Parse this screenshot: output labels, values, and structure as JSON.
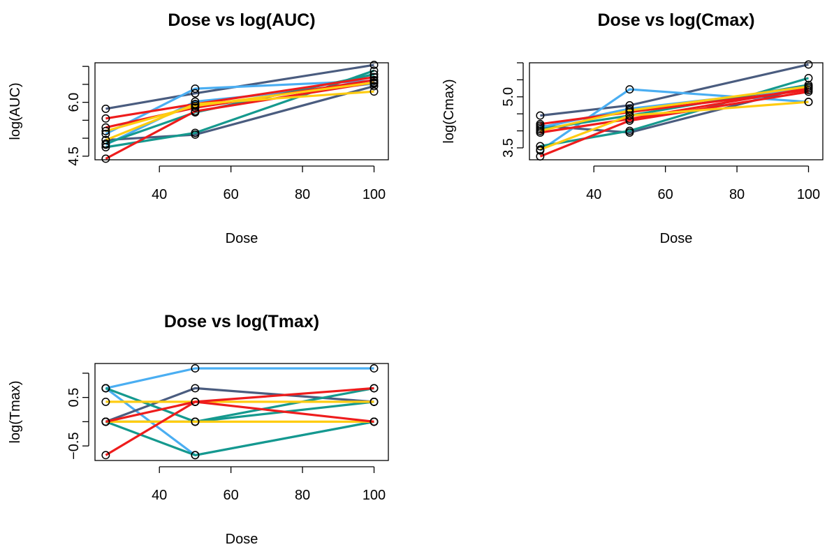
{
  "colors": {
    "navy": "#4A5C7F",
    "skyblue": "#4AAEF2",
    "teal": "#15998E",
    "red": "#EE1C1C",
    "gold": "#FFCC11",
    "point_outline": "#000000",
    "frame": "#000000"
  },
  "chart_data": [
    {
      "type": "line",
      "title": "Dose vs log(AUC)",
      "xlabel": "Dose",
      "ylabel": "log(AUC)",
      "xlim": [
        22,
        104
      ],
      "ylim": [
        4.4,
        7.1
      ],
      "xticks": [
        40,
        60,
        80,
        100
      ],
      "yticks": [
        4.5,
        5.0,
        5.5,
        6.0,
        6.5,
        7.0
      ],
      "yticklabels": [
        "4.5",
        "",
        "",
        "6.0",
        "",
        ""
      ],
      "grid": false,
      "x": [
        25,
        50,
        100
      ],
      "series": [
        {
          "color": "navy",
          "values": [
            5.82,
            6.25,
            7.04
          ]
        },
        {
          "color": "navy",
          "values": [
            4.95,
            5.1,
            6.45
          ]
        },
        {
          "color": "skyblue",
          "values": [
            5.12,
            6.38,
            6.6
          ]
        },
        {
          "color": "skyblue",
          "values": [
            4.82,
            6.02,
            6.52
          ]
        },
        {
          "color": "teal",
          "values": [
            4.75,
            5.15,
            6.88
          ]
        },
        {
          "color": "teal",
          "values": [
            4.85,
            5.72,
            6.78
          ]
        },
        {
          "color": "red",
          "values": [
            5.55,
            5.95,
            6.7
          ]
        },
        {
          "color": "red",
          "values": [
            5.3,
            5.85,
            6.62
          ]
        },
        {
          "color": "red",
          "values": [
            4.43,
            5.75,
            6.55
          ]
        },
        {
          "color": "gold",
          "values": [
            4.95,
            5.95,
            6.3
          ]
        },
        {
          "color": "gold",
          "values": [
            5.2,
            5.9,
            6.55
          ]
        }
      ]
    },
    {
      "type": "line",
      "title": "Dose vs log(Cmax)",
      "xlabel": "Dose",
      "ylabel": "log(Cmax)",
      "xlim": [
        22,
        104
      ],
      "ylim": [
        3.15,
        6.0
      ],
      "xticks": [
        40,
        60,
        80,
        100
      ],
      "yticks": [
        3.5,
        4.0,
        4.5,
        5.0,
        5.5,
        6.0
      ],
      "yticklabels": [
        "3.5",
        "",
        "",
        "5.0",
        "",
        ""
      ],
      "grid": false,
      "x": [
        25,
        50,
        100
      ],
      "series": [
        {
          "color": "navy",
          "values": [
            4.45,
            4.75,
            5.95
          ]
        },
        {
          "color": "navy",
          "values": [
            4.15,
            3.95,
            5.3
          ]
        },
        {
          "color": "skyblue",
          "values": [
            3.42,
            5.22,
            4.85
          ]
        },
        {
          "color": "skyblue",
          "values": [
            4.1,
            4.65,
            5.25
          ]
        },
        {
          "color": "teal",
          "values": [
            3.55,
            4.0,
            5.55
          ]
        },
        {
          "color": "teal",
          "values": [
            4.05,
            4.45,
            5.35
          ]
        },
        {
          "color": "red",
          "values": [
            4.2,
            4.55,
            5.2
          ]
        },
        {
          "color": "red",
          "values": [
            3.95,
            4.35,
            5.25
          ]
        },
        {
          "color": "red",
          "values": [
            3.25,
            4.3,
            5.15
          ]
        },
        {
          "color": "gold",
          "values": [
            3.45,
            4.45,
            4.85
          ]
        },
        {
          "color": "gold",
          "values": [
            4.0,
            4.6,
            5.3
          ]
        }
      ]
    },
    {
      "type": "line",
      "title": "Dose vs log(Tmax)",
      "xlabel": "Dose",
      "ylabel": "log(Tmax)",
      "xlim": [
        22,
        104
      ],
      "ylim": [
        -0.8,
        1.2
      ],
      "xticks": [
        40,
        60,
        80,
        100
      ],
      "yticks": [
        -0.5,
        0.0,
        0.5,
        1.0
      ],
      "yticklabels": [
        "−0.5",
        "",
        "0.5",
        ""
      ],
      "grid": false,
      "x": [
        25,
        50,
        100
      ],
      "series": [
        {
          "color": "skyblue",
          "values": [
            0.69,
            1.1,
            1.1
          ]
        },
        {
          "color": "skyblue",
          "values": [
            0.69,
            -0.69,
            0.0
          ]
        },
        {
          "color": "navy",
          "values": [
            0.0,
            0.69,
            0.41
          ]
        },
        {
          "color": "teal",
          "values": [
            0.69,
            0.0,
            0.69
          ]
        },
        {
          "color": "teal",
          "values": [
            0.0,
            -0.69,
            0.0
          ]
        },
        {
          "color": "teal",
          "values": [
            0.0,
            0.0,
            0.41
          ]
        },
        {
          "color": "gold",
          "values": [
            0.41,
            0.41,
            0.41
          ]
        },
        {
          "color": "gold",
          "values": [
            0.0,
            0.0,
            0.0
          ]
        },
        {
          "color": "red",
          "values": [
            -0.69,
            0.41,
            0.69
          ]
        },
        {
          "color": "red",
          "values": [
            0.0,
            0.41,
            0.0
          ]
        }
      ]
    }
  ]
}
